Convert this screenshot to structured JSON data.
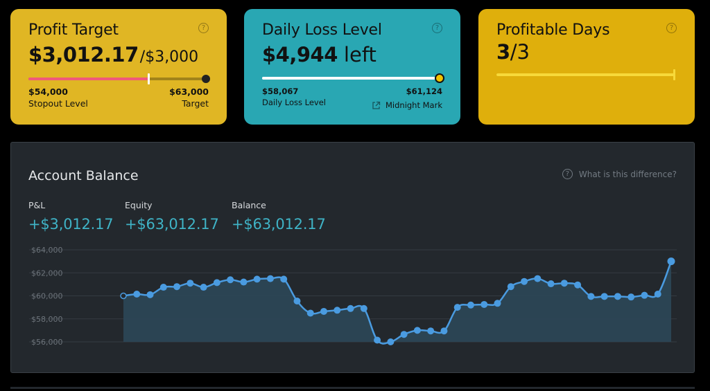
{
  "profit_target": {
    "title": "Profit Target",
    "amount": "$3,012.17",
    "target": "/$3,000",
    "left_value": "$54,000",
    "left_label": "Stopout Level",
    "right_value": "$63,000",
    "right_label": "Target",
    "progress": 0.67,
    "help": "?"
  },
  "daily_loss": {
    "title": "Daily Loss Level",
    "amount": "$4,944",
    "amount_suffix": "left",
    "left_value": "$58,067",
    "left_label": "Daily Loss Level",
    "right_value": "$61,124",
    "right_label": "Midnight Mark",
    "progress": 1.0,
    "help": "?"
  },
  "profitable_days": {
    "title": "Profitable Days",
    "count": "3",
    "total": "/3",
    "progress": 1.0,
    "help": "?"
  },
  "account_balance": {
    "title": "Account Balance",
    "help_text": "What is this difference?",
    "help_icon": "?",
    "metrics": [
      {
        "label": "P&L",
        "value": "+$3,012.17"
      },
      {
        "label": "Equity",
        "value": "+$63,012.17"
      },
      {
        "label": "Balance",
        "value": "+$63,012.17"
      }
    ]
  },
  "colors": {
    "profit_card": "#e0b624",
    "daily_card": "#29a7b3",
    "days_card": "#dfaf0c",
    "line": "#4a9be0",
    "area": "#2c4655",
    "metric_value": "#3fb3c6"
  },
  "chart_data": {
    "type": "area",
    "ylim": [
      56000,
      64000
    ],
    "y_ticks": [
      "$56,000",
      "$58,000",
      "$60,000",
      "$62,000",
      "$64,000"
    ],
    "y_tick_values": [
      56000,
      58000,
      60000,
      62000,
      64000
    ],
    "grid": true,
    "series": [
      {
        "values": [
          60000,
          60150,
          60100,
          60750,
          60800,
          61100,
          60750,
          61150,
          61400,
          61200,
          61450,
          61500,
          61450,
          59550,
          58500,
          58650,
          58750,
          58900,
          58900,
          56150,
          56000,
          56650,
          57000,
          56950,
          56950,
          59000,
          59200,
          59250,
          59350,
          60800,
          61250,
          61500,
          61050,
          61100,
          60950,
          59950,
          59950,
          59950,
          59900,
          60050,
          60150,
          63000
        ]
      }
    ]
  }
}
